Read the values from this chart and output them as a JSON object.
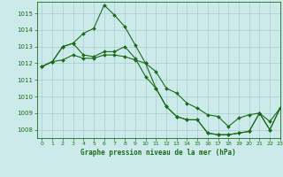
{
  "title": "Graphe pression niveau de la mer (hPa)",
  "bg_color": "#cceaea",
  "line_color": "#1a6b1a",
  "grid_color": "#aacccc",
  "xlim": [
    -0.5,
    23
  ],
  "ylim": [
    1007.5,
    1015.7
  ],
  "xticks": [
    0,
    1,
    2,
    3,
    4,
    5,
    6,
    7,
    8,
    9,
    10,
    11,
    12,
    13,
    14,
    15,
    16,
    17,
    18,
    19,
    20,
    21,
    22,
    23
  ],
  "yticks": [
    1008,
    1009,
    1010,
    1011,
    1012,
    1013,
    1014,
    1015
  ],
  "series": [
    {
      "x": [
        0,
        1,
        2,
        3,
        4,
        5,
        6,
        7,
        8,
        9,
        10,
        11,
        12,
        13,
        14,
        15,
        16,
        17,
        18,
        19,
        20,
        21,
        22,
        23
      ],
      "y": [
        1011.8,
        1012.1,
        1013.0,
        1013.2,
        1013.8,
        1014.1,
        1015.5,
        1014.9,
        1014.2,
        1013.1,
        1012.0,
        1010.5,
        1009.4,
        1008.8,
        1008.6,
        1008.6,
        1007.8,
        1007.7,
        1007.7,
        1007.8,
        1007.9,
        1009.0,
        1008.0,
        1009.3
      ]
    },
    {
      "x": [
        0,
        1,
        2,
        3,
        4,
        5,
        6,
        7,
        8,
        9,
        10,
        11,
        12,
        13,
        14,
        15,
        16,
        17,
        18,
        19,
        20,
        21,
        22,
        23
      ],
      "y": [
        1011.8,
        1012.1,
        1013.0,
        1013.2,
        1012.5,
        1012.4,
        1012.7,
        1012.7,
        1013.0,
        1012.3,
        1011.2,
        1010.5,
        1009.4,
        1008.8,
        1008.6,
        1008.6,
        1007.8,
        1007.7,
        1007.7,
        1007.8,
        1007.9,
        1009.0,
        1008.0,
        1009.3
      ]
    },
    {
      "x": [
        0,
        1,
        2,
        3,
        4,
        5,
        6,
        7,
        8,
        9,
        10,
        11,
        12,
        13,
        14,
        15,
        16,
        17,
        18,
        19,
        20,
        21,
        22,
        23
      ],
      "y": [
        1011.8,
        1012.1,
        1012.2,
        1012.5,
        1012.3,
        1012.3,
        1012.5,
        1012.5,
        1012.4,
        1012.2,
        1012.0,
        1011.5,
        1010.5,
        1010.2,
        1009.6,
        1009.3,
        1008.9,
        1008.8,
        1008.2,
        1008.7,
        1008.9,
        1009.0,
        1008.5,
        1009.3
      ]
    }
  ]
}
